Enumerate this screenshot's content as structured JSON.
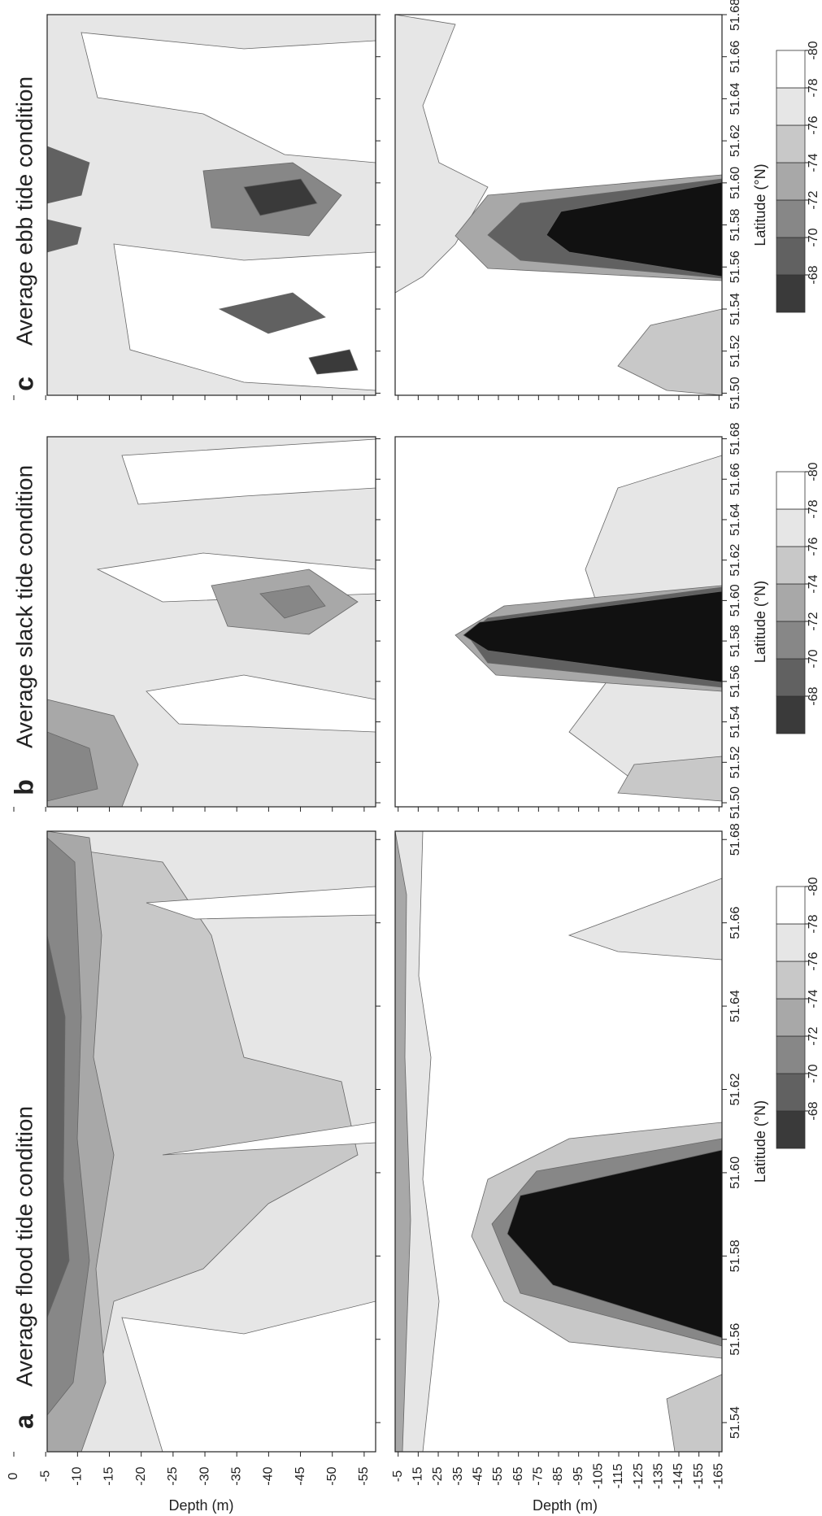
{
  "chart_data": [
    {
      "type": "contour",
      "panel_label": "a",
      "title": "Average flood tide condition",
      "xlabel": "Latitude (°N)",
      "xlim": [
        51.533,
        51.682
      ],
      "xticks": [
        51.54,
        51.56,
        51.58,
        {
          "value": 51.6,
          "label": "51.60"
        },
        51.62,
        51.64,
        51.66,
        51.68
      ],
      "upper": {
        "ylabel": "Depth (m)",
        "ylim": [
          0,
          -56.8
        ],
        "yticks": [
          0,
          -5,
          -10,
          -15,
          -20,
          -25,
          -30,
          -35,
          -40,
          -45,
          -50,
          -55
        ]
      },
      "lower": {
        "ylabel": "Depth (m)",
        "ylim": [
          -3.5,
          -166.5
        ],
        "yticks": [
          -5,
          -15,
          -25,
          -35,
          -45,
          -55,
          -65,
          -75,
          -85,
          -95,
          -105,
          -115,
          -125,
          -135,
          -145,
          -155,
          -165
        ]
      },
      "colorbar": {
        "ylim": [
          -66,
          -80
        ],
        "ticks": [
          -68,
          -70,
          -72,
          -74,
          -76,
          -78,
          -80
        ],
        "colors": [
          "#3a3a3a",
          "#616161",
          "#878787",
          "#a8a8a8",
          "#c8c8c8",
          "#e6e6e6",
          "#ffffff"
        ]
      }
    },
    {
      "type": "contour",
      "panel_label": "b",
      "title": "Average slack tide condition",
      "xlabel": "Latitude (°N)",
      "xlim": [
        51.498,
        51.681
      ],
      "xticks": [
        {
          "value": 51.5,
          "label": "51.50"
        },
        51.52,
        51.54,
        51.56,
        51.58,
        {
          "value": 51.6,
          "label": "51.60"
        },
        51.62,
        51.64,
        51.66,
        51.68
      ],
      "colorbar": {
        "ylim": [
          -66,
          -80
        ],
        "ticks": [
          -68,
          -70,
          -72,
          -74,
          -76,
          -78,
          -80
        ],
        "colors": [
          "#3a3a3a",
          "#616161",
          "#878787",
          "#a8a8a8",
          "#c8c8c8",
          "#e6e6e6",
          "#ffffff"
        ]
      }
    },
    {
      "type": "contour",
      "panel_label": "c",
      "title": "Average ebb tide condition",
      "xlabel": "Latitude (°N)",
      "xlim": [
        51.499,
        51.68
      ],
      "xticks": [
        {
          "value": 51.5,
          "label": "51.50"
        },
        51.52,
        51.54,
        51.56,
        51.58,
        {
          "value": 51.6,
          "label": "51.60"
        },
        51.62,
        51.64,
        51.66,
        51.68
      ],
      "colorbar": {
        "ylim": [
          -66,
          -80
        ],
        "ticks": [
          -68,
          -70,
          -72,
          -74,
          -76,
          -78,
          -80
        ],
        "colors": [
          "#3a3a3a",
          "#616161",
          "#878787",
          "#a8a8a8",
          "#c8c8c8",
          "#e6e6e6",
          "#ffffff"
        ]
      }
    }
  ]
}
